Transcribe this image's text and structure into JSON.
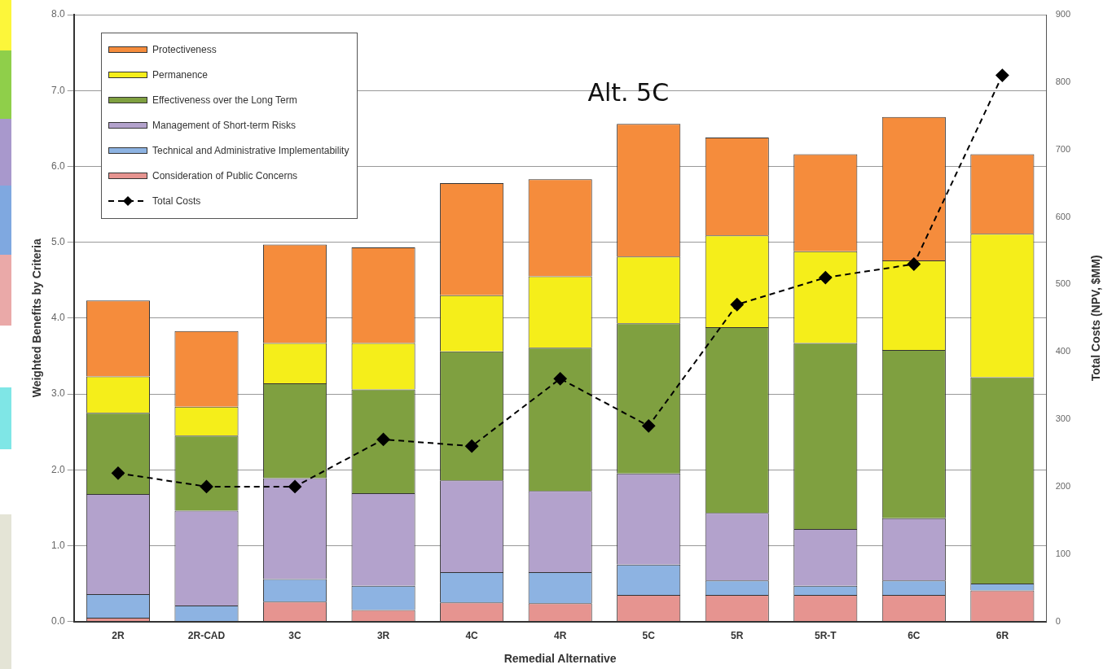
{
  "chart_data": {
    "type": "bar",
    "stacked": true,
    "xlabel": "Remedial Alternative",
    "ylabel": "Weighted Benefits by Criteria",
    "y2label": "Total Costs (NPV, $MM)",
    "categories": [
      "2R",
      "2R-CAD",
      "3C",
      "3R",
      "4C",
      "4R",
      "5C",
      "5R",
      "5R-T",
      "6C",
      "6R"
    ],
    "ylim": [
      0,
      8
    ],
    "yticks": [
      {
        "value": 0,
        "label": "0.0"
      },
      {
        "value": 1,
        "label": "1.0"
      },
      {
        "value": 2,
        "label": "2.0"
      },
      {
        "value": 3,
        "label": "3.0"
      },
      {
        "value": 4,
        "label": "4.0"
      },
      {
        "value": 5,
        "label": "5.0"
      },
      {
        "value": 6,
        "label": "6.0"
      },
      {
        "value": 7,
        "label": "7.0"
      },
      {
        "value": 8,
        "label": "8.0"
      }
    ],
    "y2lim": [
      0,
      900
    ],
    "y2ticks": [
      0,
      100,
      200,
      300,
      400,
      500,
      600,
      700,
      800,
      900
    ],
    "grid": "y",
    "legend": "top left",
    "series": [
      {
        "name": "Consideration of Public Concerns",
        "color": "#e69490",
        "values": [
          0.05,
          0,
          0.26,
          0.15,
          0.25,
          0.24,
          0.35,
          0.35,
          0.35,
          0.35,
          0.41
        ]
      },
      {
        "name": "Technical and Administrative Implementability",
        "color": "#8db3e2",
        "values": [
          0.31,
          0.21,
          0.3,
          0.32,
          0.4,
          0.41,
          0.4,
          0.19,
          0.12,
          0.19,
          0.09
        ]
      },
      {
        "name": "Management of Short-term Risks",
        "color": "#b3a2cc",
        "values": [
          1.32,
          1.25,
          1.33,
          1.22,
          1.21,
          1.07,
          1.2,
          0.89,
          0.75,
          0.82,
          0
        ]
      },
      {
        "name": "Effectiveness over the Long Term",
        "color": "#7fa040",
        "values": [
          1.07,
          0.99,
          1.25,
          1.37,
          1.7,
          1.89,
          1.98,
          2.45,
          2.45,
          2.22,
          2.72
        ]
      },
      {
        "name": "Permanence",
        "color": "#f5ee1a",
        "values": [
          0.48,
          0.38,
          0.53,
          0.61,
          0.74,
          0.94,
          0.88,
          1.21,
          1.21,
          1.18,
          1.89
        ]
      },
      {
        "name": "Protectiveness",
        "color": "#f58c3c",
        "values": [
          1.0,
          1.0,
          1.3,
          1.26,
          1.48,
          1.28,
          1.75,
          1.29,
          1.28,
          1.89,
          1.05
        ]
      },
      {
        "name": "Total Costs",
        "type": "line",
        "axis": "y2",
        "color": "#000000",
        "marker": "diamond",
        "line_style": "dashed",
        "values": [
          220,
          200,
          200,
          270,
          260,
          360,
          290,
          470,
          510,
          530,
          810
        ]
      }
    ],
    "annotations": [
      "Alt. 5C"
    ]
  }
}
